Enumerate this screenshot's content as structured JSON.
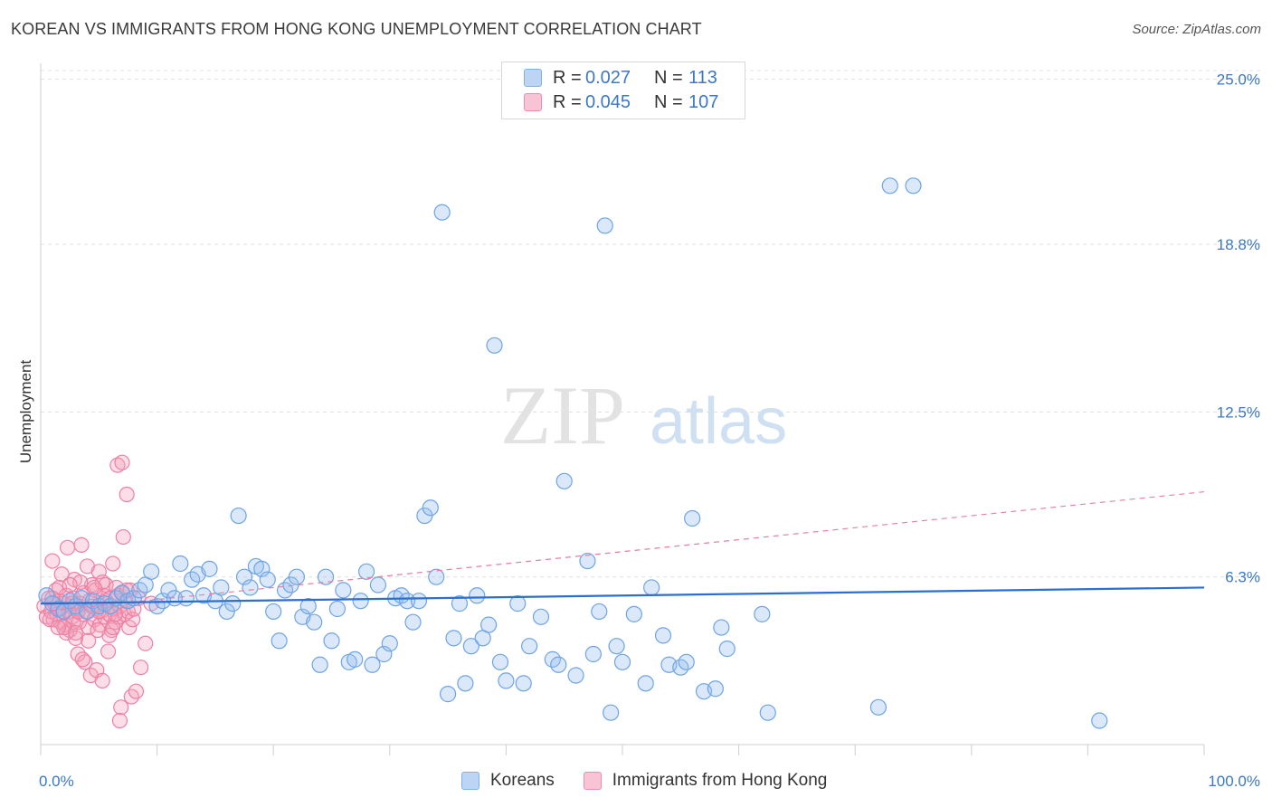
{
  "header": {
    "title": "KOREAN VS IMMIGRANTS FROM HONG KONG UNEMPLOYMENT CORRELATION CHART",
    "source": "Source: ZipAtlas.com"
  },
  "watermark": {
    "zip": "ZIP",
    "atlas": "atlas"
  },
  "legend": {
    "r_label": "R =",
    "n_label": "N =",
    "rows": [
      {
        "name": "Koreans",
        "r": "0.027",
        "n": "113",
        "color": "#7fb0e8"
      },
      {
        "name": "Immigrants from Hong Kong",
        "r": "0.045",
        "n": "107",
        "color": "#f08cab"
      }
    ]
  },
  "chart_data": {
    "type": "scatter",
    "title": "KOREAN VS IMMIGRANTS FROM HONG KONG UNEMPLOYMENT CORRELATION CHART",
    "ylabel": "Unemployment",
    "xlabel": "",
    "x_tick_labels": [
      "0.0%",
      "100.0%"
    ],
    "y_tick_labels": [
      "6.3%",
      "12.5%",
      "18.8%",
      "25.0%"
    ],
    "y_ticks": [
      6.3,
      12.5,
      18.8,
      25.0
    ],
    "xlim": [
      0,
      100
    ],
    "ylim": [
      0,
      25.6
    ],
    "grid": true,
    "colors": {
      "koreans": "#6ea4e6",
      "koreans_line": "#2b6fd1",
      "hongkong": "#ef7fa3",
      "hongkong_line": "#e87fa0",
      "tick_label": "#3a78c9"
    },
    "series": [
      {
        "name": "Koreans",
        "trend": [
          [
            0,
            5.3
          ],
          [
            100,
            5.9
          ]
        ],
        "points": [
          [
            0.5,
            5.6
          ],
          [
            1.0,
            5.3
          ],
          [
            1.5,
            5.1
          ],
          [
            2.0,
            5.0
          ],
          [
            2.5,
            5.4
          ],
          [
            3.0,
            5.2
          ],
          [
            3.5,
            5.5
          ],
          [
            4.0,
            5.0
          ],
          [
            4.5,
            5.4
          ],
          [
            5.0,
            5.2
          ],
          [
            5.5,
            5.3
          ],
          [
            6.0,
            5.2
          ],
          [
            6.5,
            5.5
          ],
          [
            7.0,
            5.7
          ],
          [
            7.5,
            5.4
          ],
          [
            8.0,
            5.5
          ],
          [
            8.5,
            5.8
          ],
          [
            9.0,
            6.0
          ],
          [
            9.5,
            6.5
          ],
          [
            10.0,
            5.2
          ],
          [
            10.5,
            5.4
          ],
          [
            11.0,
            5.8
          ],
          [
            11.5,
            5.5
          ],
          [
            12.0,
            6.8
          ],
          [
            12.5,
            5.5
          ],
          [
            13.0,
            6.2
          ],
          [
            13.5,
            6.4
          ],
          [
            14.0,
            5.6
          ],
          [
            14.5,
            6.6
          ],
          [
            15.0,
            5.4
          ],
          [
            15.5,
            5.9
          ],
          [
            16.0,
            5.0
          ],
          [
            16.5,
            5.3
          ],
          [
            17.0,
            8.6
          ],
          [
            17.5,
            6.3
          ],
          [
            18.0,
            5.9
          ],
          [
            18.5,
            6.7
          ],
          [
            19.0,
            6.6
          ],
          [
            19.5,
            6.2
          ],
          [
            20.0,
            5.0
          ],
          [
            20.5,
            3.9
          ],
          [
            21.0,
            5.8
          ],
          [
            21.5,
            6.0
          ],
          [
            22.0,
            6.3
          ],
          [
            22.5,
            4.8
          ],
          [
            23.0,
            5.2
          ],
          [
            23.5,
            4.6
          ],
          [
            24.0,
            3.0
          ],
          [
            24.5,
            6.3
          ],
          [
            25.0,
            3.9
          ],
          [
            25.5,
            5.1
          ],
          [
            26.0,
            5.8
          ],
          [
            26.5,
            3.1
          ],
          [
            27.0,
            3.2
          ],
          [
            27.5,
            5.4
          ],
          [
            28.0,
            6.5
          ],
          [
            28.5,
            3.0
          ],
          [
            29.0,
            6.0
          ],
          [
            29.5,
            3.4
          ],
          [
            30.0,
            3.8
          ],
          [
            30.5,
            5.5
          ],
          [
            31.0,
            5.6
          ],
          [
            31.5,
            5.4
          ],
          [
            32.0,
            4.6
          ],
          [
            32.5,
            5.4
          ],
          [
            33.0,
            8.6
          ],
          [
            33.5,
            8.9
          ],
          [
            34.0,
            6.3
          ],
          [
            34.5,
            20.0
          ],
          [
            35.0,
            1.9
          ],
          [
            35.5,
            4.0
          ],
          [
            36.0,
            5.3
          ],
          [
            36.5,
            2.3
          ],
          [
            37.0,
            3.7
          ],
          [
            37.5,
            5.6
          ],
          [
            38.0,
            4.0
          ],
          [
            38.5,
            4.5
          ],
          [
            39.0,
            15.0
          ],
          [
            39.5,
            3.1
          ],
          [
            40.0,
            2.4
          ],
          [
            41.0,
            5.3
          ],
          [
            41.5,
            2.3
          ],
          [
            42.0,
            3.7
          ],
          [
            43.0,
            4.8
          ],
          [
            44.0,
            3.2
          ],
          [
            44.5,
            3.0
          ],
          [
            45.0,
            9.9
          ],
          [
            46.0,
            2.6
          ],
          [
            47.0,
            6.9
          ],
          [
            47.5,
            3.4
          ],
          [
            48.0,
            5.0
          ],
          [
            49.0,
            1.2
          ],
          [
            49.5,
            3.7
          ],
          [
            50.0,
            3.1
          ],
          [
            51.0,
            4.9
          ],
          [
            52.0,
            2.3
          ],
          [
            52.5,
            5.9
          ],
          [
            53.5,
            4.1
          ],
          [
            54.0,
            3.0
          ],
          [
            55.0,
            2.9
          ],
          [
            55.5,
            3.1
          ],
          [
            56.0,
            8.5
          ],
          [
            57.0,
            2.0
          ],
          [
            58.0,
            2.1
          ],
          [
            58.5,
            4.4
          ],
          [
            59.0,
            3.6
          ],
          [
            62.0,
            4.9
          ],
          [
            62.5,
            1.2
          ],
          [
            73.0,
            21.0
          ],
          [
            75.0,
            21.0
          ],
          [
            72.0,
            1.4
          ],
          [
            91.0,
            0.9
          ],
          [
            48.5,
            19.5
          ]
        ]
      },
      {
        "name": "Immigrants from Hong Kong",
        "trend": [
          [
            0,
            5.0
          ],
          [
            100,
            9.5
          ]
        ],
        "points": [
          [
            0.3,
            5.2
          ],
          [
            0.5,
            4.8
          ],
          [
            0.7,
            5.5
          ],
          [
            0.9,
            5.0
          ],
          [
            1.0,
            6.9
          ],
          [
            1.1,
            4.7
          ],
          [
            1.2,
            5.3
          ],
          [
            1.3,
            5.8
          ],
          [
            1.4,
            4.9
          ],
          [
            1.5,
            5.1
          ],
          [
            1.6,
            5.4
          ],
          [
            1.7,
            4.6
          ],
          [
            1.8,
            6.4
          ],
          [
            1.9,
            5.0
          ],
          [
            2.0,
            5.3
          ],
          [
            2.1,
            4.5
          ],
          [
            2.2,
            5.6
          ],
          [
            2.3,
            7.4
          ],
          [
            2.4,
            5.0
          ],
          [
            2.5,
            4.3
          ],
          [
            2.6,
            5.2
          ],
          [
            2.7,
            4.8
          ],
          [
            2.8,
            5.5
          ],
          [
            2.9,
            6.2
          ],
          [
            3.0,
            4.0
          ],
          [
            3.1,
            5.1
          ],
          [
            3.2,
            3.4
          ],
          [
            3.3,
            4.6
          ],
          [
            3.4,
            5.3
          ],
          [
            3.5,
            7.5
          ],
          [
            3.6,
            4.9
          ],
          [
            3.7,
            5.7
          ],
          [
            3.8,
            3.1
          ],
          [
            3.9,
            5.0
          ],
          [
            4.0,
            6.7
          ],
          [
            4.1,
            4.4
          ],
          [
            4.2,
            5.4
          ],
          [
            4.3,
            2.6
          ],
          [
            4.4,
            6.0
          ],
          [
            4.5,
            5.2
          ],
          [
            4.6,
            4.7
          ],
          [
            4.7,
            5.8
          ],
          [
            4.8,
            2.8
          ],
          [
            4.9,
            5.1
          ],
          [
            5.0,
            6.5
          ],
          [
            5.1,
            4.5
          ],
          [
            5.2,
            5.0
          ],
          [
            5.3,
            2.4
          ],
          [
            5.4,
            5.6
          ],
          [
            5.5,
            4.8
          ],
          [
            5.6,
            6.0
          ],
          [
            5.7,
            5.3
          ],
          [
            5.8,
            3.5
          ],
          [
            5.9,
            4.9
          ],
          [
            6.0,
            5.5
          ],
          [
            6.1,
            4.3
          ],
          [
            6.2,
            6.8
          ],
          [
            6.3,
            5.1
          ],
          [
            6.4,
            4.6
          ],
          [
            6.5,
            5.9
          ],
          [
            6.6,
            10.5
          ],
          [
            6.7,
            4.8
          ],
          [
            6.8,
            5.2
          ],
          [
            6.9,
            1.4
          ],
          [
            7.0,
            5.7
          ],
          [
            7.1,
            7.8
          ],
          [
            7.2,
            4.9
          ],
          [
            7.3,
            5.4
          ],
          [
            7.4,
            9.4
          ],
          [
            7.5,
            5.0
          ],
          [
            7.6,
            4.4
          ],
          [
            7.7,
            5.8
          ],
          [
            7.8,
            1.8
          ],
          [
            7.9,
            4.7
          ],
          [
            8.0,
            5.1
          ],
          [
            8.2,
            2.0
          ],
          [
            8.4,
            5.5
          ],
          [
            8.6,
            2.9
          ],
          [
            9.0,
            3.8
          ],
          [
            9.5,
            5.3
          ],
          [
            2.2,
            4.2
          ],
          [
            3.6,
            3.2
          ],
          [
            2.8,
            4.6
          ],
          [
            1.6,
            5.9
          ],
          [
            4.1,
            3.9
          ],
          [
            5.3,
            6.1
          ],
          [
            6.6,
            5.6
          ],
          [
            3.2,
            5.0
          ],
          [
            2.0,
            4.4
          ],
          [
            4.6,
            5.9
          ],
          [
            1.0,
            5.5
          ],
          [
            5.9,
            4.1
          ],
          [
            0.8,
            4.7
          ],
          [
            3.4,
            6.1
          ],
          [
            4.4,
            5.2
          ],
          [
            6.2,
            4.4
          ],
          [
            7.4,
            5.8
          ],
          [
            2.5,
            6.0
          ],
          [
            3.0,
            4.2
          ],
          [
            5.0,
            5.0
          ],
          [
            6.8,
            0.9
          ],
          [
            7.0,
            10.6
          ],
          [
            1.5,
            4.4
          ],
          [
            2.7,
            5.3
          ],
          [
            4.9,
            4.3
          ],
          [
            5.6,
            5.4
          ],
          [
            6.4,
            4.9
          ]
        ]
      }
    ]
  }
}
